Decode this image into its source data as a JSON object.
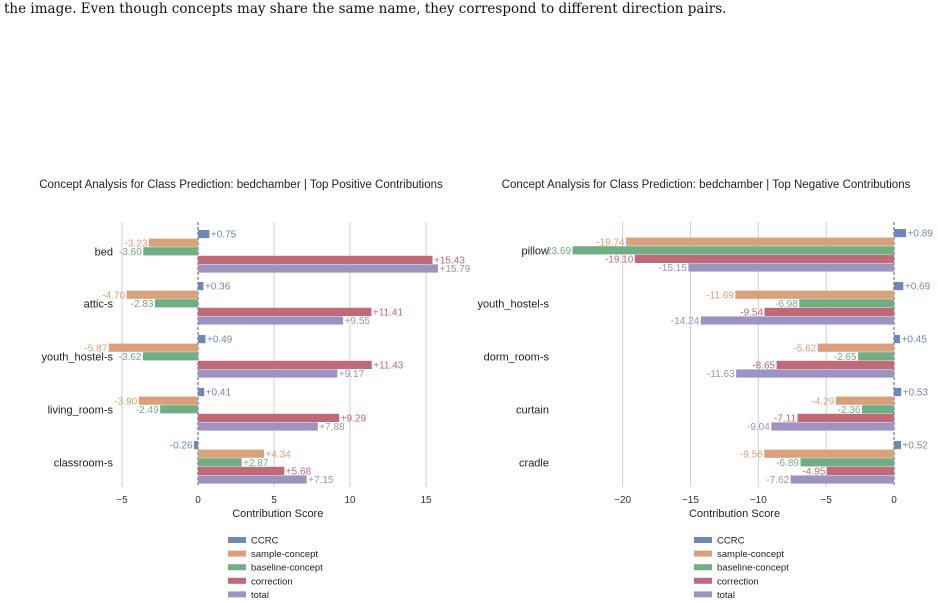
{
  "caption": "the image. Even though concepts may share the same name, they correspond to different direction pairs.",
  "colors": {
    "CCRC": "#7088b8",
    "sample-concept": "#d9a07c",
    "baseline-concept": "#72ae84",
    "correction": "#c06a78",
    "total": "#9d93c0"
  },
  "chart_data": [
    {
      "type": "bar",
      "orientation": "horizontal",
      "title": "Concept Analysis for Class Prediction: bedchamber | Top Positive Contributions",
      "xlabel": "Contribution Score",
      "ylabel": "",
      "xlim": [
        -6.3,
        16.8
      ],
      "xticks": [
        -5,
        0,
        5,
        10,
        15
      ],
      "grid": true,
      "legend_position": "bottom",
      "categories": [
        "bed",
        "attic-s",
        "youth_hostel-s",
        "living_room-s",
        "classroom-s"
      ],
      "series": [
        {
          "name": "CCRC",
          "values": [
            0.75,
            0.36,
            0.49,
            0.41,
            -0.26
          ],
          "labels": [
            "+0.75",
            "+0.36",
            "+0.49",
            "+0.41",
            "-0.26"
          ]
        },
        {
          "name": "sample-concept",
          "values": [
            -3.23,
            -4.7,
            -5.87,
            -3.9,
            4.34
          ],
          "labels": [
            "-3.23",
            "-4.70",
            "-5.87",
            "-3.90",
            "+4.34"
          ]
        },
        {
          "name": "baseline-concept",
          "values": [
            -3.6,
            -2.83,
            -3.62,
            -2.49,
            2.87
          ],
          "labels": [
            "-3.60",
            "-2.83",
            "-3.62",
            "-2.49",
            "+2.87"
          ]
        },
        {
          "name": "correction",
          "values": [
            15.43,
            11.41,
            11.43,
            9.29,
            5.68
          ],
          "labels": [
            "+15.43",
            "+11.41",
            "+11.43",
            "+9.29",
            "+5.68"
          ]
        },
        {
          "name": "total",
          "values": [
            15.79,
            9.55,
            9.17,
            7.88,
            7.15
          ],
          "labels": [
            "+15.79",
            "+9.55",
            "+9.17",
            "+7.88",
            "+7.15"
          ]
        }
      ]
    },
    {
      "type": "bar",
      "orientation": "horizontal",
      "title": "Concept Analysis for Class Prediction: bedchamber | Top Negative Contributions",
      "xlabel": "Contribution Score",
      "ylabel": "",
      "xlim": [
        -24.6,
        1.1
      ],
      "xticks": [
        -20,
        -15,
        -10,
        -5,
        0
      ],
      "grid": true,
      "legend_position": "bottom",
      "categories": [
        "pillow",
        "youth_hostel-s",
        "dorm_room-s",
        "curtain",
        "cradle"
      ],
      "series": [
        {
          "name": "CCRC",
          "values": [
            0.89,
            0.69,
            0.45,
            0.53,
            0.52
          ],
          "labels": [
            "+0.89",
            "+0.69",
            "+0.45",
            "+0.53",
            "+0.52"
          ]
        },
        {
          "name": "sample-concept",
          "values": [
            -19.74,
            -11.69,
            -5.62,
            -4.29,
            -9.56
          ],
          "labels": [
            "-19.74",
            "-11.69",
            "-5.62",
            "-4.29",
            "-9.56"
          ]
        },
        {
          "name": "baseline-concept",
          "values": [
            -23.69,
            -6.98,
            -2.65,
            -2.36,
            -6.89
          ],
          "labels": [
            "-23.69",
            "-6.98",
            "-2.65",
            "-2.36",
            "-6.89"
          ]
        },
        {
          "name": "correction",
          "values": [
            -19.1,
            -9.54,
            -8.65,
            -7.11,
            -4.95
          ],
          "labels": [
            "-19.10",
            "-9.54",
            "-8.65",
            "-7.11",
            "-4.95"
          ]
        },
        {
          "name": "total",
          "values": [
            -15.15,
            -14.24,
            -11.63,
            -9.04,
            -7.62
          ],
          "labels": [
            "-15.15",
            "-14.24",
            "-11.63",
            "-9.04",
            "-7.62"
          ]
        }
      ]
    }
  ]
}
